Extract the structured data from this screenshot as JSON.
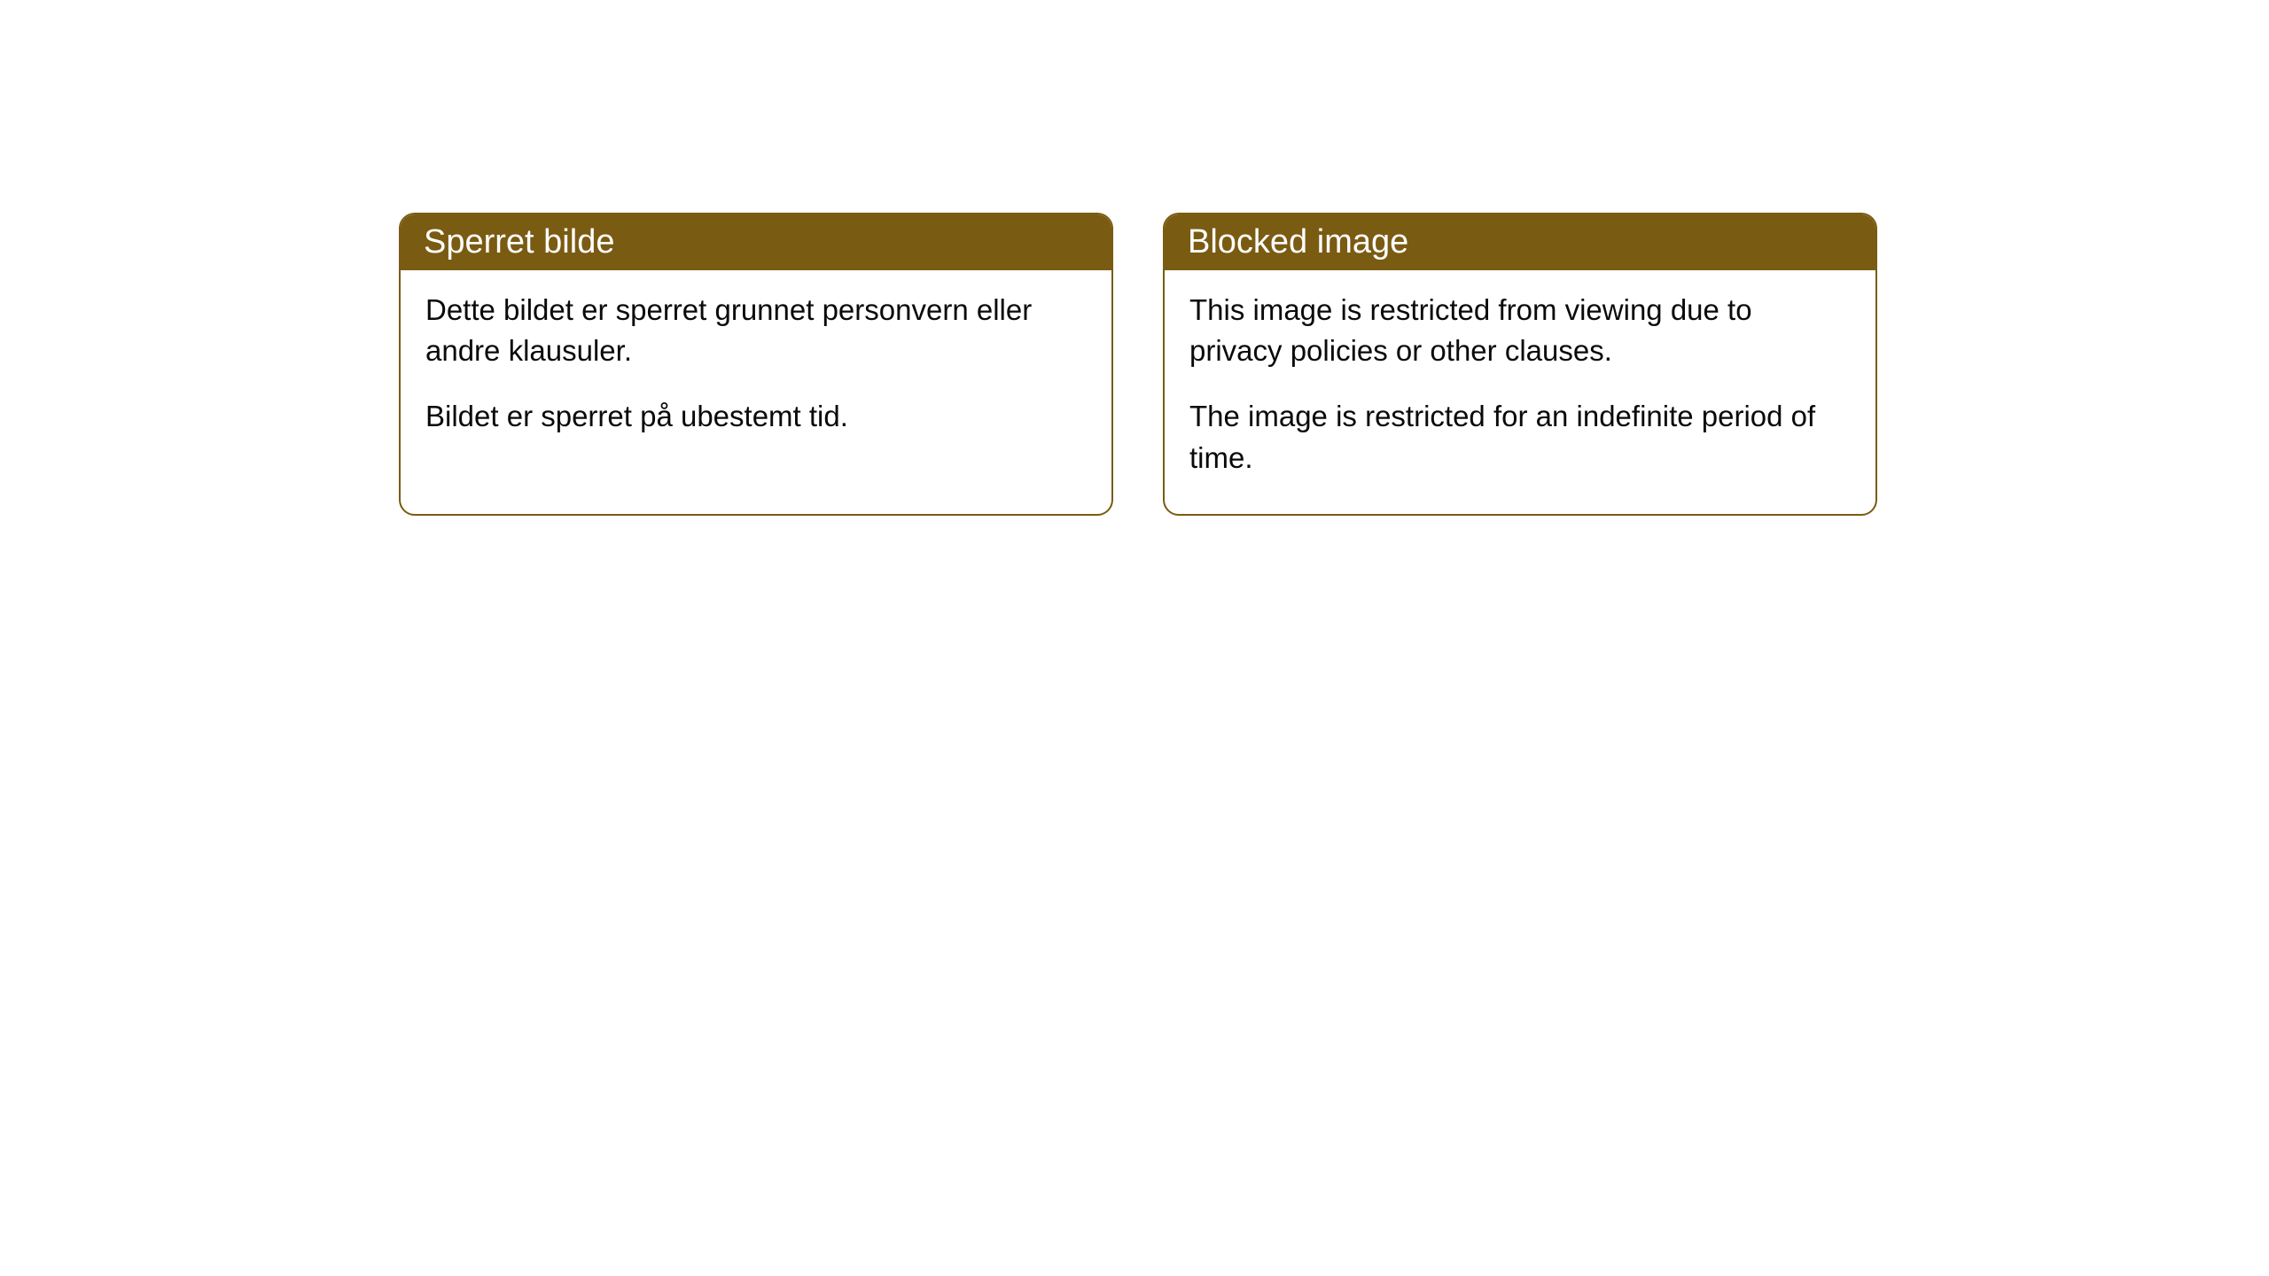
{
  "cards": [
    {
      "title": "Sperret bilde",
      "paragraph1": "Dette bildet er sperret grunnet personvern eller andre klausuler.",
      "paragraph2": "Bildet er sperret på ubestemt tid."
    },
    {
      "title": "Blocked image",
      "paragraph1": "This image is restricted from viewing due to privacy policies or other clauses.",
      "paragraph2": "The image is restricted for an indefinite period of time."
    }
  ],
  "styling": {
    "header_background": "#7a5b12",
    "header_text_color": "#ffffff",
    "border_color": "#7a5b12",
    "body_background": "#ffffff",
    "body_text_color": "#0a0a0a",
    "border_radius": 18,
    "title_fontsize": 38,
    "body_fontsize": 33
  }
}
